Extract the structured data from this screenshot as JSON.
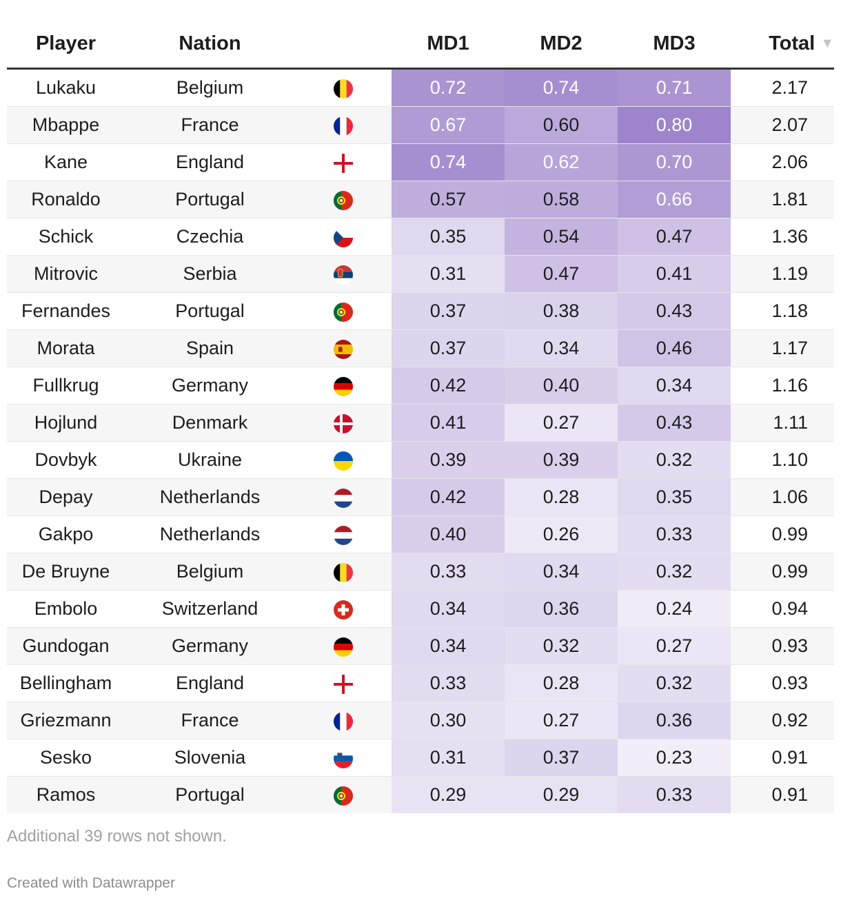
{
  "table": {
    "headers": {
      "player": "Player",
      "nation": "Nation",
      "flag": "",
      "md1": "MD1",
      "md2": "MD2",
      "md3": "MD3",
      "total": "Total"
    },
    "sort_icon": "sort-descending-icon",
    "rows": [
      {
        "player": "Lukaku",
        "nation": "Belgium",
        "flag": "belgium",
        "md1": "0.72",
        "md2": "0.74",
        "md3": "0.71",
        "total": "2.17"
      },
      {
        "player": "Mbappe",
        "nation": "France",
        "flag": "france",
        "md1": "0.67",
        "md2": "0.60",
        "md3": "0.80",
        "total": "2.07"
      },
      {
        "player": "Kane",
        "nation": "England",
        "flag": "england",
        "md1": "0.74",
        "md2": "0.62",
        "md3": "0.70",
        "total": "2.06"
      },
      {
        "player": "Ronaldo",
        "nation": "Portugal",
        "flag": "portugal",
        "md1": "0.57",
        "md2": "0.58",
        "md3": "0.66",
        "total": "1.81"
      },
      {
        "player": "Schick",
        "nation": "Czechia",
        "flag": "czechia",
        "md1": "0.35",
        "md2": "0.54",
        "md3": "0.47",
        "total": "1.36"
      },
      {
        "player": "Mitrovic",
        "nation": "Serbia",
        "flag": "serbia",
        "md1": "0.31",
        "md2": "0.47",
        "md3": "0.41",
        "total": "1.19"
      },
      {
        "player": "Fernandes",
        "nation": "Portugal",
        "flag": "portugal",
        "md1": "0.37",
        "md2": "0.38",
        "md3": "0.43",
        "total": "1.18"
      },
      {
        "player": "Morata",
        "nation": "Spain",
        "flag": "spain",
        "md1": "0.37",
        "md2": "0.34",
        "md3": "0.46",
        "total": "1.17"
      },
      {
        "player": "Fullkrug",
        "nation": "Germany",
        "flag": "germany",
        "md1": "0.42",
        "md2": "0.40",
        "md3": "0.34",
        "total": "1.16"
      },
      {
        "player": "Hojlund",
        "nation": "Denmark",
        "flag": "denmark",
        "md1": "0.41",
        "md2": "0.27",
        "md3": "0.43",
        "total": "1.11"
      },
      {
        "player": "Dovbyk",
        "nation": "Ukraine",
        "flag": "ukraine",
        "md1": "0.39",
        "md2": "0.39",
        "md3": "0.32",
        "total": "1.10"
      },
      {
        "player": "Depay",
        "nation": "Netherlands",
        "flag": "netherlands",
        "md1": "0.42",
        "md2": "0.28",
        "md3": "0.35",
        "total": "1.06"
      },
      {
        "player": "Gakpo",
        "nation": "Netherlands",
        "flag": "netherlands",
        "md1": "0.40",
        "md2": "0.26",
        "md3": "0.33",
        "total": "0.99"
      },
      {
        "player": "De Bruyne",
        "nation": "Belgium",
        "flag": "belgium",
        "md1": "0.33",
        "md2": "0.34",
        "md3": "0.32",
        "total": "0.99"
      },
      {
        "player": "Embolo",
        "nation": "Switzerland",
        "flag": "switzerland",
        "md1": "0.34",
        "md2": "0.36",
        "md3": "0.24",
        "total": "0.94"
      },
      {
        "player": "Gundogan",
        "nation": "Germany",
        "flag": "germany",
        "md1": "0.34",
        "md2": "0.32",
        "md3": "0.27",
        "total": "0.93"
      },
      {
        "player": "Bellingham",
        "nation": "England",
        "flag": "england",
        "md1": "0.33",
        "md2": "0.28",
        "md3": "0.32",
        "total": "0.93"
      },
      {
        "player": "Griezmann",
        "nation": "France",
        "flag": "france",
        "md1": "0.30",
        "md2": "0.27",
        "md3": "0.36",
        "total": "0.92"
      },
      {
        "player": "Sesko",
        "nation": "Slovenia",
        "flag": "slovenia",
        "md1": "0.31",
        "md2": "0.37",
        "md3": "0.23",
        "total": "0.91"
      },
      {
        "player": "Ramos",
        "nation": "Portugal",
        "flag": "portugal",
        "md1": "0.29",
        "md2": "0.29",
        "md3": "0.33",
        "total": "0.91"
      }
    ],
    "heatmap_color": "#8c6fc2"
  },
  "footnote": "Additional 39 rows not shown.",
  "credit": "Created with Datawrapper"
}
